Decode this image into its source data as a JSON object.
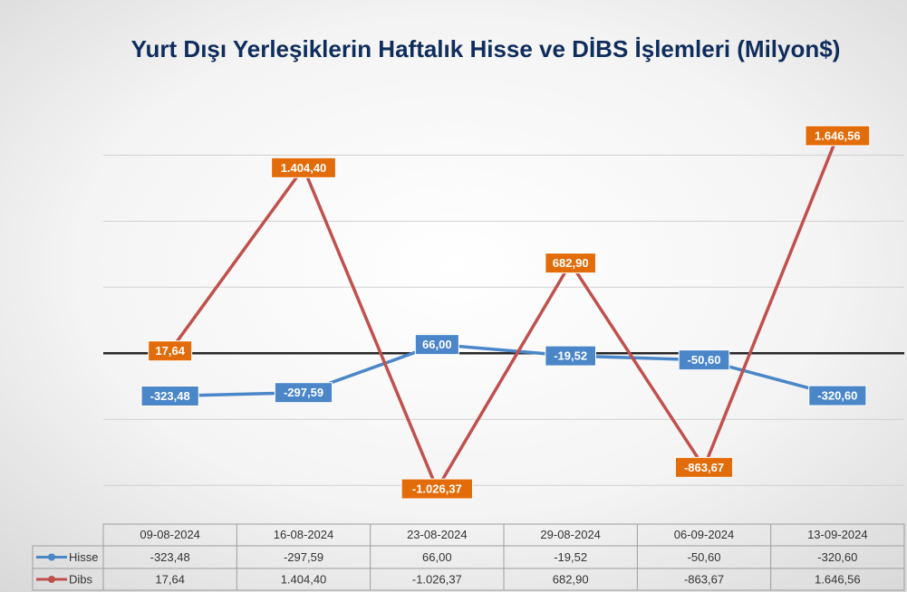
{
  "chart_data": {
    "type": "line",
    "title": "Yurt Dışı Yerleşiklerin Haftalık Hisse ve DİBS İşlemleri (Milyon$)",
    "categories": [
      "09-08-2024",
      "16-08-2024",
      "23-08-2024",
      "29-08-2024",
      "06-09-2024",
      "13-09-2024"
    ],
    "series": [
      {
        "name": "Hisse",
        "color": "#4a86c8",
        "values": [
          -323.48,
          -297.59,
          66.0,
          -19.52,
          -50.6,
          -320.6
        ],
        "labels": [
          "-323,48",
          "-297,59",
          "66,00",
          "-19,52",
          "-50,60",
          "-320,60"
        ]
      },
      {
        "name": "Dibs",
        "color": "#c0504d",
        "label_color": "#e36c0a",
        "values": [
          17.64,
          1404.4,
          -1026.37,
          682.9,
          -863.67,
          1646.56
        ],
        "labels": [
          "17,64",
          "1.404,40",
          "-1.026,37",
          "682,90",
          "-863,67",
          "1.646,56"
        ]
      }
    ],
    "ylim": [
      -1300,
      2400
    ],
    "grid": true,
    "legend": "data table below plot",
    "zero_line": true
  }
}
